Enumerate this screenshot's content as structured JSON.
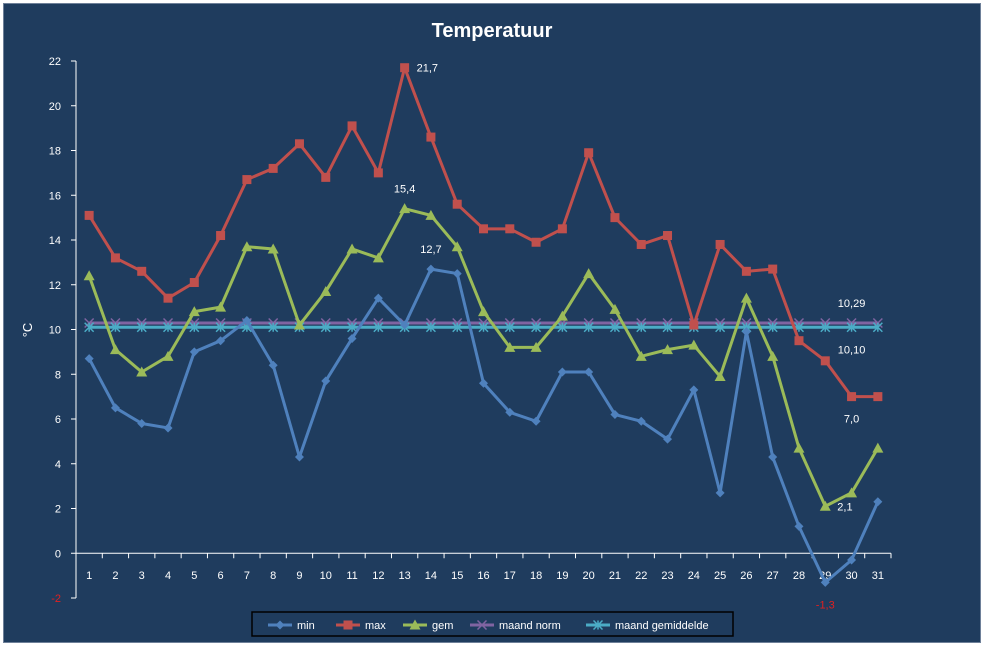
{
  "chart_data": {
    "type": "line",
    "title": "Temperatuur",
    "ylabel": "°C",
    "xlabel": "",
    "ylim": [
      -2,
      22
    ],
    "yticks": [
      22,
      20,
      18,
      16,
      14,
      12,
      10,
      8,
      6,
      4,
      2,
      0,
      -2
    ],
    "grid": false,
    "legend_position": "bottom",
    "x": [
      1,
      2,
      3,
      4,
      5,
      6,
      7,
      8,
      9,
      10,
      11,
      12,
      13,
      14,
      15,
      16,
      17,
      18,
      19,
      20,
      21,
      22,
      23,
      24,
      25,
      26,
      27,
      28,
      29,
      30,
      31
    ],
    "series": [
      {
        "name": "min",
        "color": "#4f81bd",
        "marker": "diamond",
        "values": [
          8.7,
          6.5,
          5.8,
          5.6,
          9.0,
          9.5,
          10.4,
          8.4,
          4.3,
          7.7,
          9.6,
          11.4,
          10.2,
          12.7,
          12.5,
          7.6,
          6.3,
          5.9,
          8.1,
          8.1,
          6.2,
          5.9,
          5.1,
          7.3,
          2.7,
          9.9,
          4.3,
          1.2,
          -1.3,
          -0.3,
          2.3
        ]
      },
      {
        "name": "max",
        "color": "#c0504d",
        "marker": "square",
        "values": [
          15.1,
          13.2,
          12.6,
          11.4,
          12.1,
          14.2,
          16.7,
          17.2,
          18.3,
          16.8,
          19.1,
          17.0,
          21.7,
          18.6,
          15.6,
          14.5,
          14.5,
          13.9,
          14.5,
          17.9,
          15.0,
          13.8,
          14.2,
          10.2,
          13.8,
          12.6,
          12.7,
          9.5,
          8.6,
          7.0,
          7.0
        ]
      },
      {
        "name": "gem",
        "color": "#9bbb59",
        "marker": "triangle",
        "values": [
          12.4,
          9.1,
          8.1,
          8.8,
          10.8,
          11.0,
          13.7,
          13.6,
          10.2,
          11.7,
          13.6,
          13.2,
          15.4,
          15.1,
          13.7,
          10.8,
          9.2,
          9.2,
          10.6,
          12.5,
          10.9,
          8.8,
          9.1,
          9.3,
          7.9,
          11.4,
          8.8,
          4.7,
          2.1,
          2.7,
          4.7
        ]
      },
      {
        "name": "maand norm",
        "color": "#8064a2",
        "marker": "x",
        "values": [
          10.29,
          10.29,
          10.29,
          10.29,
          10.29,
          10.29,
          10.29,
          10.29,
          10.29,
          10.29,
          10.29,
          10.29,
          10.29,
          10.29,
          10.29,
          10.29,
          10.29,
          10.29,
          10.29,
          10.29,
          10.29,
          10.29,
          10.29,
          10.29,
          10.29,
          10.29,
          10.29,
          10.29,
          10.29,
          10.29,
          10.29
        ]
      },
      {
        "name": "maand gemiddelde",
        "color": "#4bacc6",
        "marker": "star",
        "values": [
          10.1,
          10.1,
          10.1,
          10.1,
          10.1,
          10.1,
          10.1,
          10.1,
          10.1,
          10.1,
          10.1,
          10.1,
          10.1,
          10.1,
          10.1,
          10.1,
          10.1,
          10.1,
          10.1,
          10.1,
          10.1,
          10.1,
          10.1,
          10.1,
          10.1,
          10.1,
          10.1,
          10.1,
          10.1,
          10.1,
          10.1
        ]
      }
    ],
    "annotations": [
      {
        "text": "21,7",
        "x": 13,
        "series": "max",
        "anchor": "right"
      },
      {
        "text": "15,4",
        "x": 13,
        "series": "gem",
        "anchor": "above"
      },
      {
        "text": "12,7",
        "x": 14,
        "series": "min",
        "anchor": "above"
      },
      {
        "text": "10,29",
        "x": 30,
        "series": "maand norm",
        "anchor": "above"
      },
      {
        "text": "10,10",
        "x": 30,
        "series": "maand gemiddelde",
        "anchor": "below"
      },
      {
        "text": "7,0",
        "x": 30,
        "series": "max",
        "anchor": "below"
      },
      {
        "text": "2,1",
        "x": 29,
        "series": "gem",
        "anchor": "right"
      },
      {
        "text": "-1,3",
        "x": 29,
        "series": "min",
        "anchor": "below",
        "negative": true
      }
    ]
  }
}
